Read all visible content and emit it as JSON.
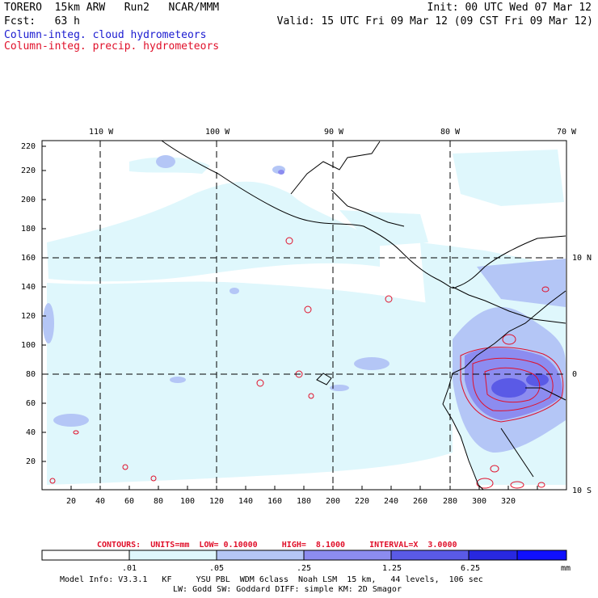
{
  "header": {
    "model": "TORERO  15km ARW   Run2   NCAR/MMM",
    "init": "Init: 00 UTC Wed 07 Mar 12",
    "fcst": "Fcst:   63 h",
    "valid": "Valid: 15 UTC Fri 09 Mar 12 (09 CST Fri 09 Mar 12)",
    "field1": "Column-integ. cloud hydrometeors",
    "field2": "Column-integ. precip. hydrometeors"
  },
  "map": {
    "lon_labels": [
      "110 W",
      "100 W",
      "90 W",
      "80 W",
      "70 W"
    ],
    "lat_labels": [
      "10 N",
      "0",
      "10 S"
    ],
    "x_ticks": [
      "20",
      "40",
      "60",
      "80",
      "100",
      "120",
      "140",
      "160",
      "180",
      "200",
      "220",
      "240",
      "260",
      "280",
      "300",
      "320"
    ],
    "y_ticks": [
      "20",
      "40",
      "60",
      "80",
      "100",
      "120",
      "140",
      "160",
      "180",
      "200",
      "220"
    ]
  },
  "contours": {
    "label": "CONTOURS:  UNITS=mm  LOW= 0.10000     HIGH=  8.1000     INTERVAL=X  3.0000"
  },
  "colorbar": {
    "labels": [
      ".01",
      ".05",
      ".25",
      "1.25",
      "6.25"
    ],
    "units": "mm",
    "colors": [
      "#ffffff",
      "#dff7fc",
      "#b4c6f6",
      "#8c8cf0",
      "#5a5ae6",
      "#2828e0",
      "#1010ff"
    ]
  },
  "footer": {
    "line1": "Model Info: V3.3.1   KF     YSU PBL  WDM 6class  Noah LSM  15 km,   44 levels,  106 sec",
    "line2": "LW: Godd SW: Goddard DIFF: simple KM: 2D Smagor"
  }
}
